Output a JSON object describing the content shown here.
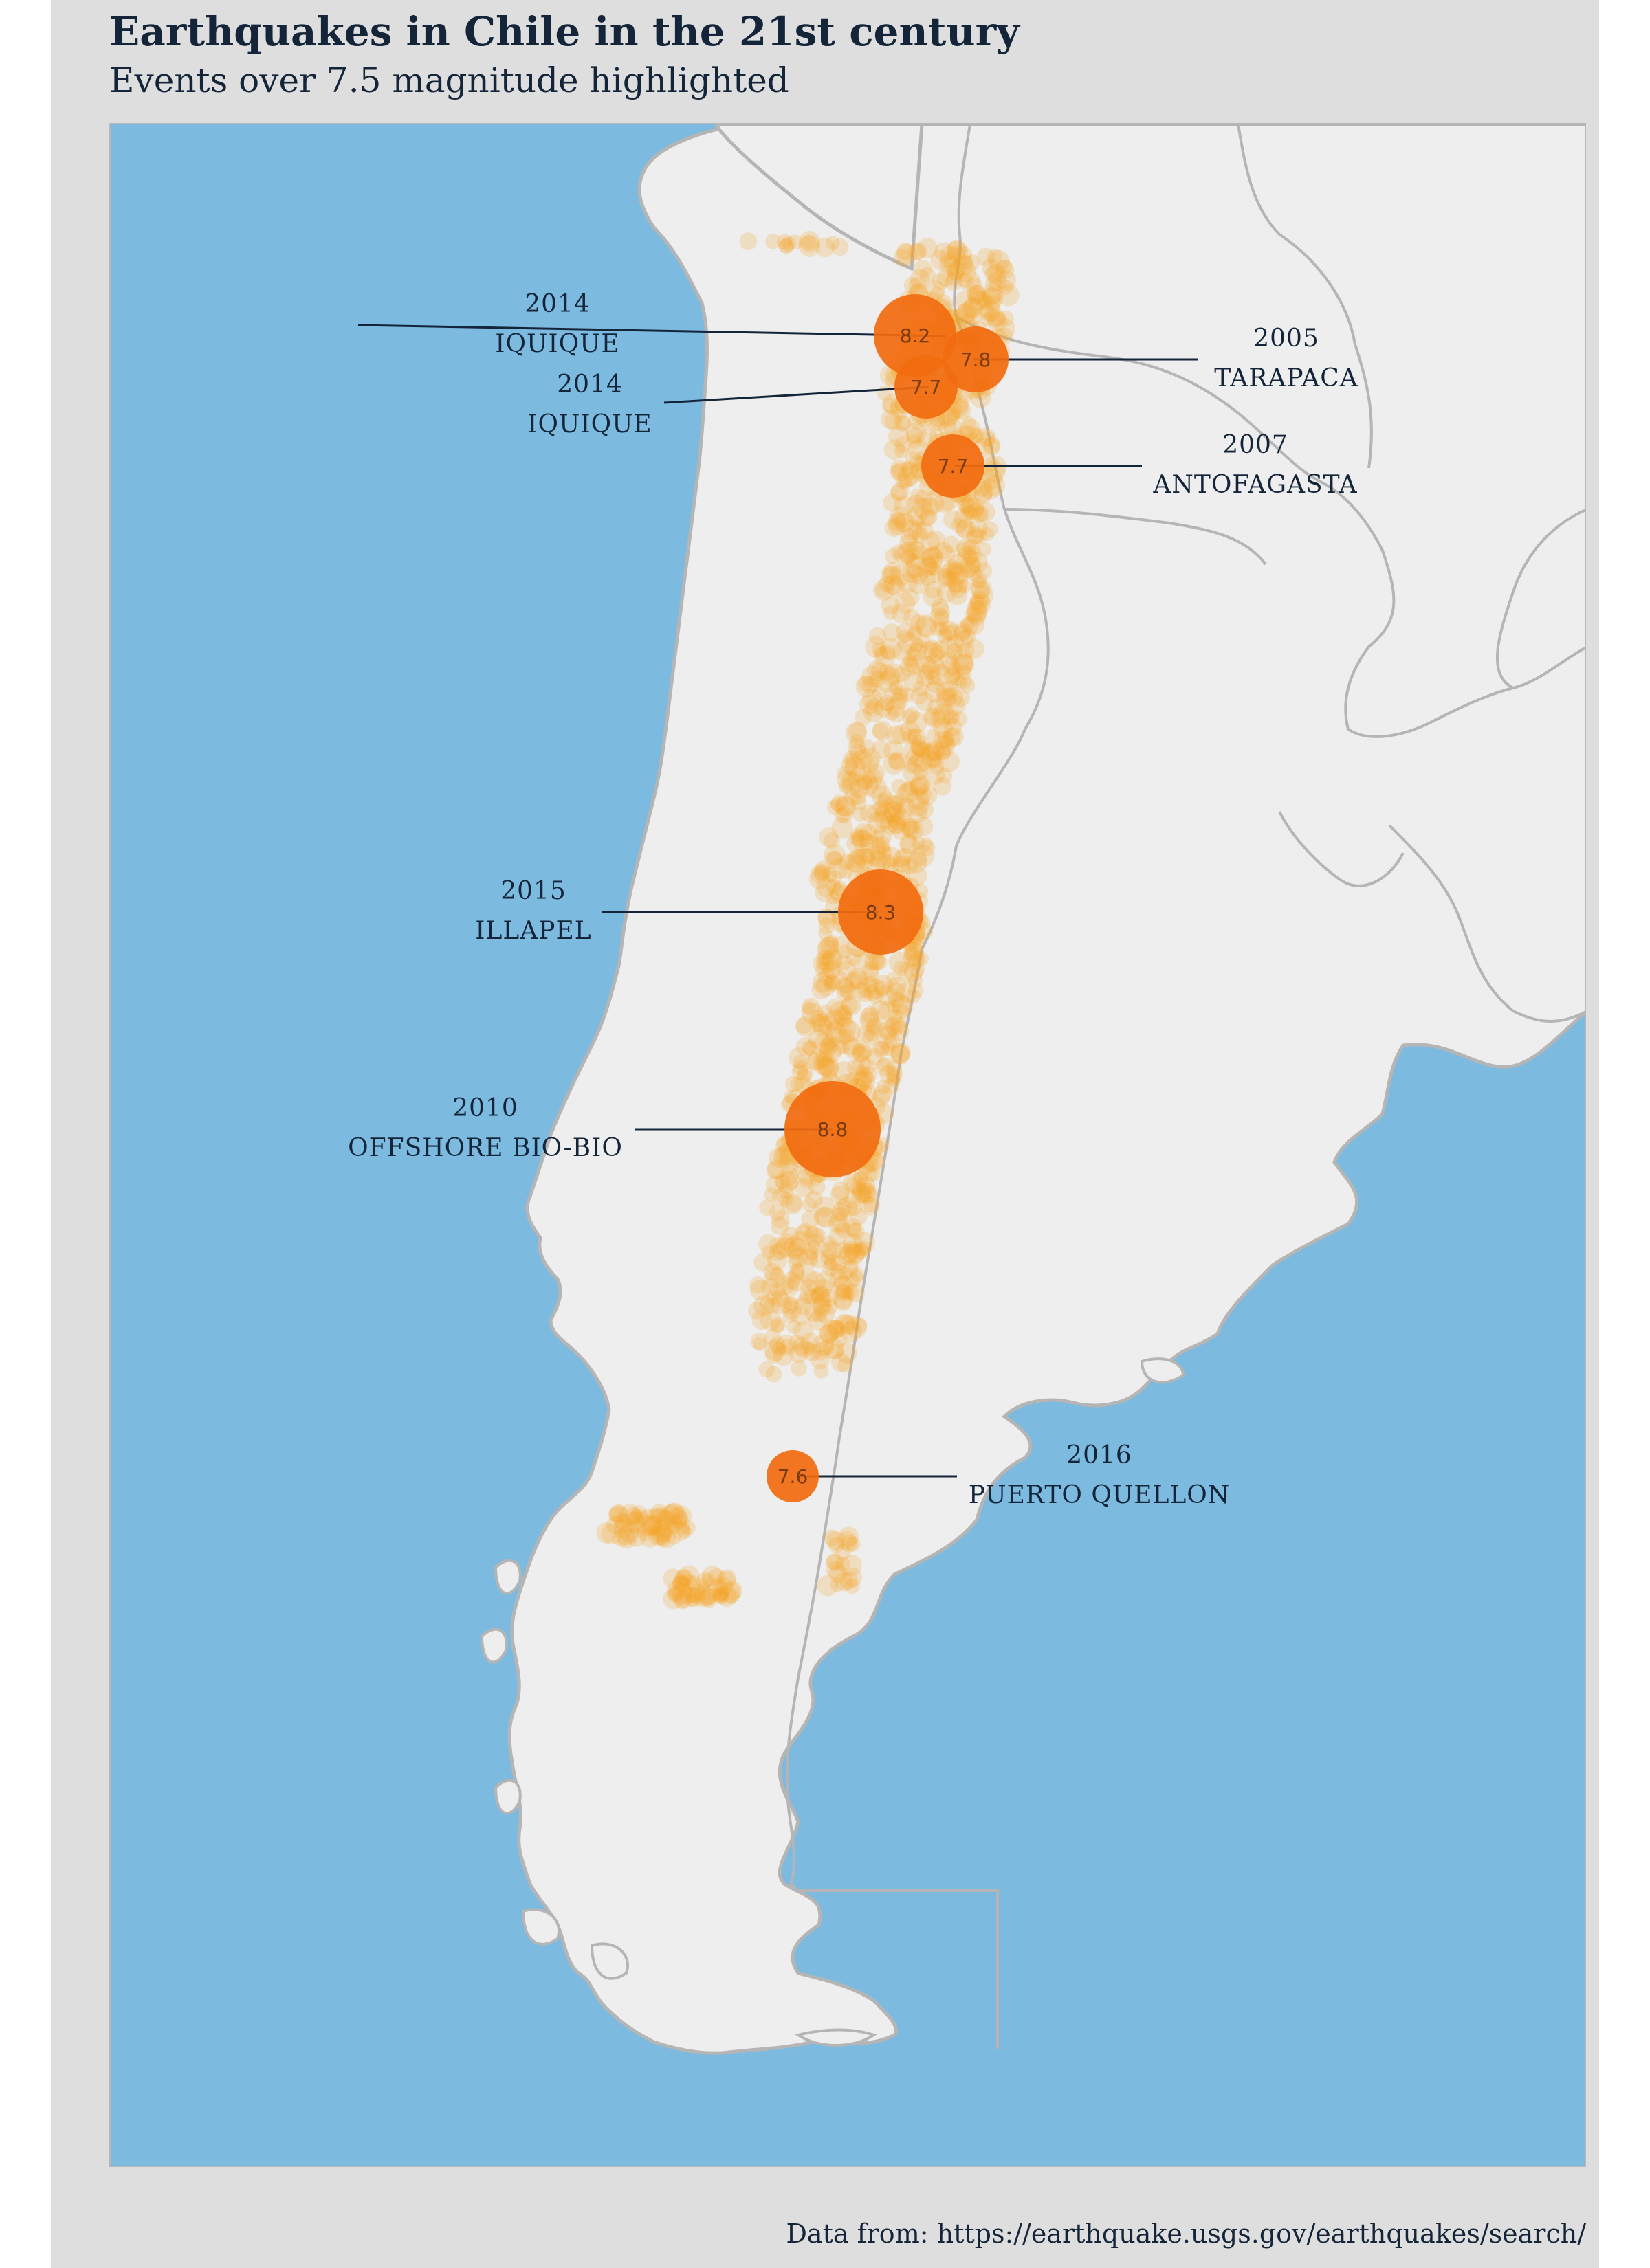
{
  "title": "Earthquakes in Chile in the 21st century",
  "subtitle": "Events over 7.5 magnitude highlighted",
  "caption": "Data from: https://earthquake.usgs.gov/earthquakes/search/",
  "colors": {
    "ocean": "#7dbadf",
    "land": "#eeeeee",
    "border": "#b5b5b5",
    "minor_quake": "#f5a623",
    "major_quake": "#f26b0f",
    "text": "#14253a"
  },
  "major_events": [
    {
      "year": "2014",
      "place": "IQUIQUE",
      "magnitude": "8.2"
    },
    {
      "year": "2005",
      "place": "TARAPACA",
      "magnitude": "7.8"
    },
    {
      "year": "2014",
      "place": "IQUIQUE",
      "magnitude": "7.7"
    },
    {
      "year": "2007",
      "place": "ANTOFAGASTA",
      "magnitude": "7.7"
    },
    {
      "year": "2015",
      "place": "ILLAPEL",
      "magnitude": "8.3"
    },
    {
      "year": "2010",
      "place": "OFFSHORE BIO-BIO",
      "magnitude": "8.8"
    },
    {
      "year": "2016",
      "place": "PUERTO QUELLON",
      "magnitude": "7.6"
    }
  ]
}
